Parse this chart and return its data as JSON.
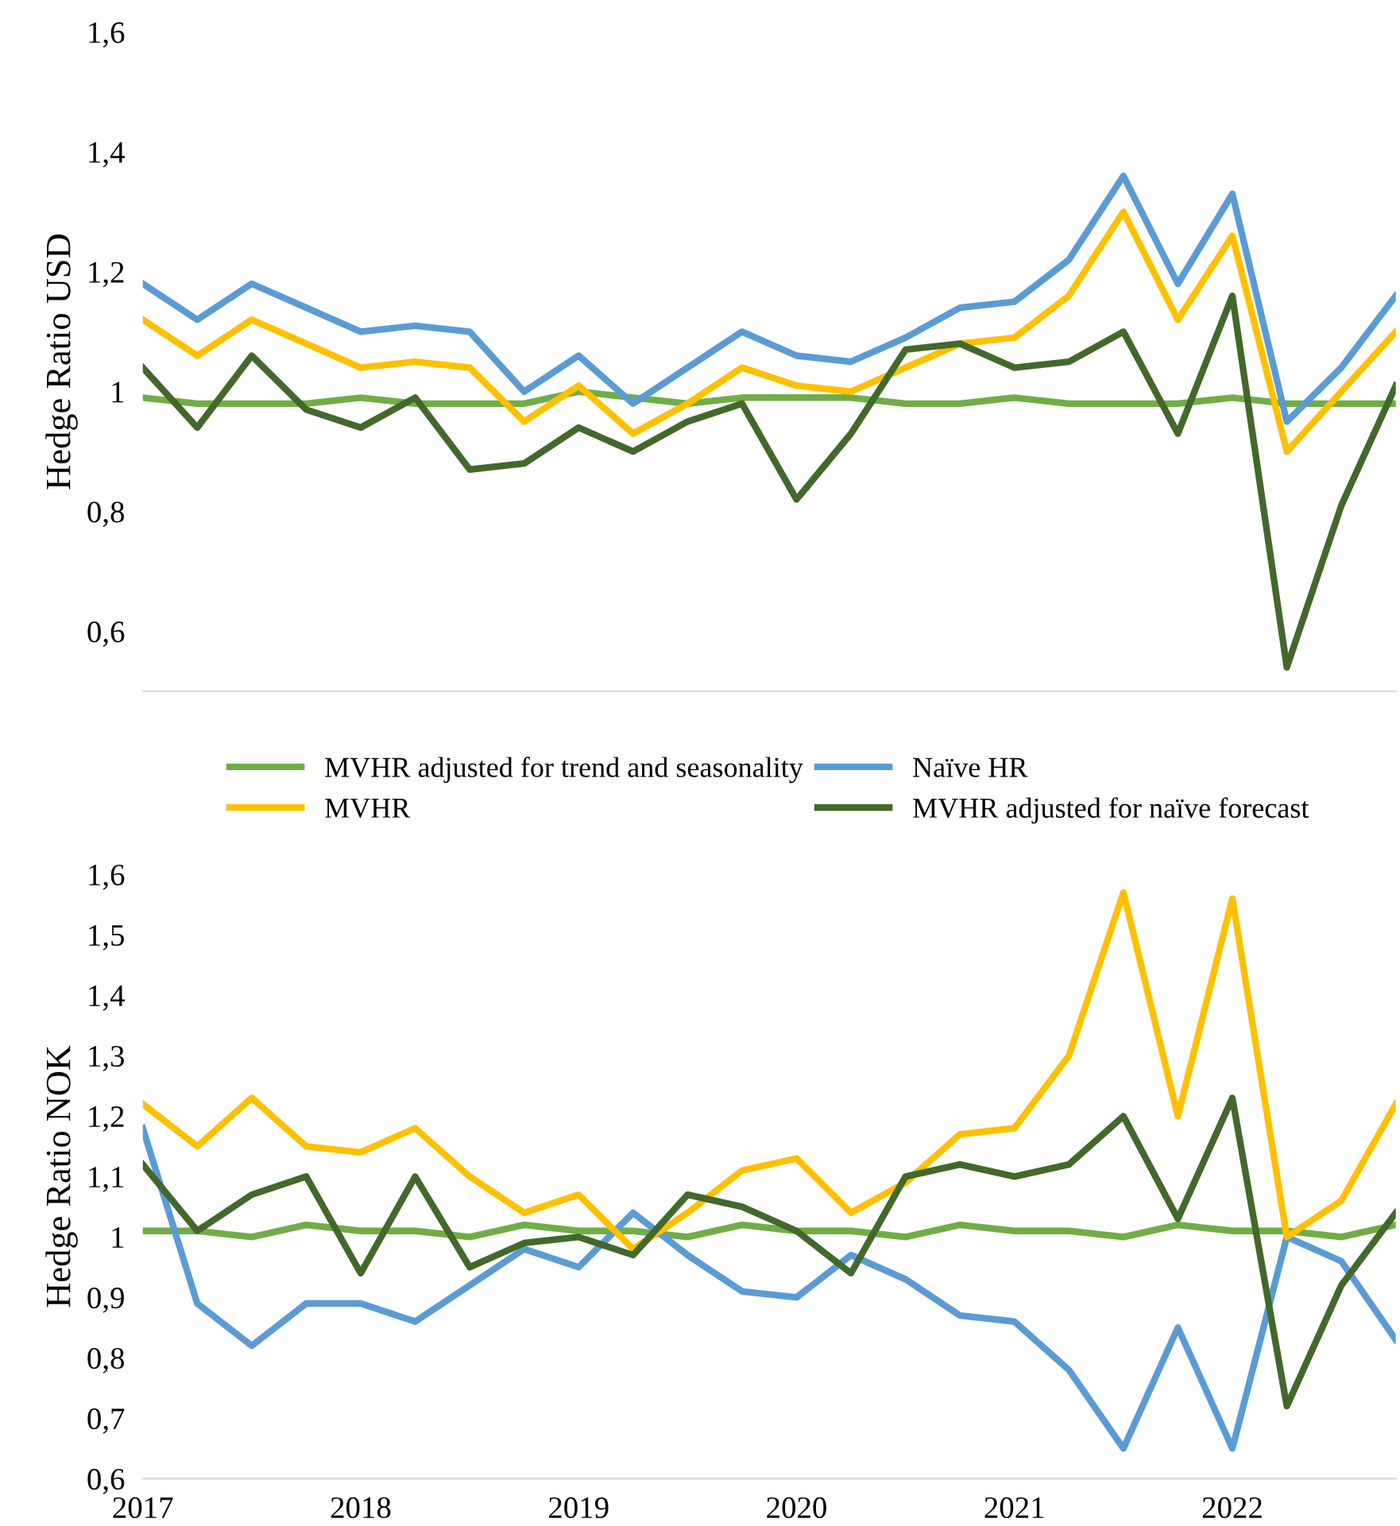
{
  "chart_data": [
    {
      "type": "line",
      "ylabel": "Hedge Ratio USD",
      "x": [
        2017,
        2017.25,
        2017.5,
        2017.75,
        2018,
        2018.25,
        2018.5,
        2018.75,
        2019,
        2019.25,
        2019.5,
        2019.75,
        2020,
        2020.25,
        2020.5,
        2020.75,
        2021,
        2021.25,
        2021.5,
        2021.75,
        2022,
        2022.25,
        2022.5,
        2022.75
      ],
      "ylim": [
        0.5,
        1.6
      ],
      "yticks": [
        {
          "value": 0.6,
          "label": "0,6"
        },
        {
          "value": 0.8,
          "label": "0,8"
        },
        {
          "value": 1,
          "label": "1"
        },
        {
          "value": 1.2,
          "label": "1,2"
        },
        {
          "value": 1.4,
          "label": "1,4"
        },
        {
          "value": 1.6,
          "label": "1,6"
        }
      ],
      "tick_labels": "y",
      "legend": "bottom",
      "line_style": "solid",
      "series": [
        {
          "name": "MVHR adjusted for trend and seasonality",
          "color": "#70ad47",
          "values": [
            0.99,
            0.98,
            0.98,
            0.98,
            0.99,
            0.98,
            0.98,
            0.98,
            1.0,
            0.99,
            0.98,
            0.99,
            0.99,
            0.99,
            0.98,
            0.98,
            0.99,
            0.98,
            0.98,
            0.98,
            0.99,
            0.98,
            0.98,
            0.98
          ]
        },
        {
          "name": "Naïve HR",
          "color": "#5b9bd5",
          "values": [
            1.18,
            1.12,
            1.18,
            1.14,
            1.1,
            1.11,
            1.1,
            1.0,
            1.06,
            0.98,
            1.04,
            1.1,
            1.06,
            1.05,
            1.09,
            1.14,
            1.15,
            1.22,
            1.36,
            1.18,
            1.33,
            0.95,
            1.04,
            1.16
          ]
        },
        {
          "name": "MVHR",
          "color": "#ffc000",
          "values": [
            1.12,
            1.06,
            1.12,
            1.08,
            1.04,
            1.05,
            1.04,
            0.95,
            1.01,
            0.93,
            0.98,
            1.04,
            1.01,
            1.0,
            1.04,
            1.08,
            1.09,
            1.16,
            1.3,
            1.12,
            1.26,
            0.9,
            1.0,
            1.1
          ]
        },
        {
          "name": "MVHR adjusted for naïve forecast",
          "color": "#43682b",
          "values": [
            1.04,
            0.94,
            1.06,
            0.97,
            0.94,
            0.99,
            0.87,
            0.88,
            0.94,
            0.9,
            0.95,
            0.98,
            0.82,
            0.93,
            1.07,
            1.08,
            1.04,
            1.05,
            1.1,
            0.93,
            1.16,
            0.54,
            0.81,
            1.01
          ]
        }
      ]
    },
    {
      "type": "line",
      "ylabel": "Hedge Ratio NOK",
      "x": [
        2017,
        2017.25,
        2017.5,
        2017.75,
        2018,
        2018.25,
        2018.5,
        2018.75,
        2019,
        2019.25,
        2019.5,
        2019.75,
        2020,
        2020.25,
        2020.5,
        2020.75,
        2021,
        2021.25,
        2021.5,
        2021.75,
        2022,
        2022.25,
        2022.5,
        2022.75
      ],
      "xlim": [
        2017,
        2022.75
      ],
      "xticks": [
        2017,
        2018,
        2019,
        2020,
        2021,
        2022
      ],
      "ylim": [
        0.6,
        1.6
      ],
      "yticks": [
        {
          "value": 0.6,
          "label": "0,6"
        },
        {
          "value": 0.7,
          "label": "0,7"
        },
        {
          "value": 0.8,
          "label": "0,8"
        },
        {
          "value": 0.9,
          "label": "0,9"
        },
        {
          "value": 1,
          "label": "1"
        },
        {
          "value": 1.1,
          "label": "1,1"
        },
        {
          "value": 1.2,
          "label": "1,2"
        },
        {
          "value": 1.3,
          "label": "1,3"
        },
        {
          "value": 1.4,
          "label": "1,4"
        },
        {
          "value": 1.5,
          "label": "1,5"
        },
        {
          "value": 1.6,
          "label": "1,6"
        }
      ],
      "line_style": "solid",
      "series": [
        {
          "color": "#70ad47",
          "values": [
            1.01,
            1.01,
            1.0,
            1.02,
            1.01,
            1.01,
            1.0,
            1.02,
            1.01,
            1.01,
            1.0,
            1.02,
            1.01,
            1.01,
            1.0,
            1.02,
            1.01,
            1.01,
            1.0,
            1.02,
            1.01,
            1.01,
            1.0,
            1.02
          ]
        },
        {
          "color": "#5b9bd5",
          "values": [
            1.18,
            0.89,
            0.82,
            0.89,
            0.89,
            0.86,
            0.92,
            0.98,
            0.95,
            1.04,
            0.97,
            0.91,
            0.9,
            0.97,
            0.93,
            0.87,
            0.86,
            0.78,
            0.65,
            0.85,
            0.65,
            1.0,
            0.96,
            0.83
          ]
        },
        {
          "color": "#ffc000",
          "values": [
            1.22,
            1.15,
            1.23,
            1.15,
            1.14,
            1.18,
            1.1,
            1.04,
            1.07,
            0.98,
            1.04,
            1.11,
            1.13,
            1.04,
            1.09,
            1.17,
            1.18,
            1.3,
            1.57,
            1.2,
            1.56,
            1.0,
            1.06,
            1.22
          ]
        },
        {
          "color": "#43682b",
          "values": [
            1.12,
            1.01,
            1.07,
            1.1,
            0.94,
            1.1,
            0.95,
            0.99,
            1.0,
            0.97,
            1.07,
            1.05,
            1.01,
            0.94,
            1.1,
            1.12,
            1.1,
            1.12,
            1.2,
            1.03,
            1.23,
            0.72,
            0.92,
            1.04
          ]
        }
      ]
    }
  ]
}
